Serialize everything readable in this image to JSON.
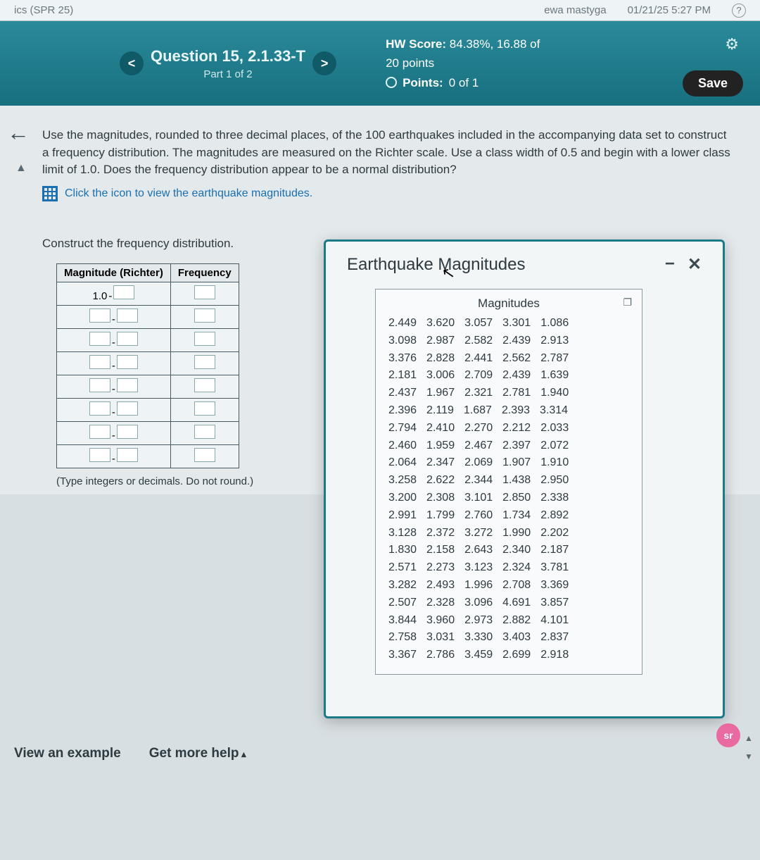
{
  "topbar": {
    "left": "ics (SPR 25)",
    "user": "ewa mastyga",
    "time": "01/21/25 5:27 PM"
  },
  "header": {
    "question_title": "Question 15, 2.1.33-T",
    "part": "Part 1 of 2",
    "hw_label": "HW Score:",
    "hw_value": "84.38%, 16.88 of",
    "hw_line2": "20 points",
    "points_label": "Points:",
    "points_value": "0 of 1",
    "save": "Save",
    "prev": "<",
    "next": ">"
  },
  "instructions": {
    "text": "Use the magnitudes, rounded to three decimal places, of the 100 earthquakes included in the accompanying data set to construct a frequency distribution. The magnitudes are measured on the Richter scale. Use a class width of 0.5 and begin with a lower class limit of 1.0. Does the frequency distribution appear to be a normal distribution?",
    "link": "Click the icon to view the earthquake magnitudes."
  },
  "freq": {
    "title": "Construct the frequency distribution.",
    "col1": "Magnitude (Richter)",
    "col2": "Frequency",
    "first_low": "1.0",
    "note": "(Type integers or decimals. Do not round.)",
    "row_count": 8
  },
  "modal": {
    "title": "Earthquake Magnitudes",
    "table_header": "Magnitudes",
    "rows": [
      [
        "2.449",
        "3.620",
        "3.057",
        "3.301",
        "1.086"
      ],
      [
        "3.098",
        "2.987",
        "2.582",
        "2.439",
        "2.913"
      ],
      [
        "3.376",
        "2.828",
        "2.441",
        "2.562",
        "2.787"
      ],
      [
        "2.181",
        "3.006",
        "2.709",
        "2.439",
        "1.639"
      ],
      [
        "2.437",
        "1.967",
        "2.321",
        "2.781",
        "1.940"
      ],
      [
        "2.396",
        "2.119",
        "1.687",
        "2.393",
        "3.314"
      ],
      [
        "2.794",
        "2.410",
        "2.270",
        "2.212",
        "2.033"
      ],
      [
        "2.460",
        "1.959",
        "2.467",
        "2.397",
        "2.072"
      ],
      [
        "2.064",
        "2.347",
        "2.069",
        "1.907",
        "1.910"
      ],
      [
        "3.258",
        "2.622",
        "2.344",
        "1.438",
        "2.950"
      ],
      [
        "3.200",
        "2.308",
        "3.101",
        "2.850",
        "2.338"
      ],
      [
        "2.991",
        "1.799",
        "2.760",
        "1.734",
        "2.892"
      ],
      [
        "3.128",
        "2.372",
        "3.272",
        "1.990",
        "2.202"
      ],
      [
        "1.830",
        "2.158",
        "2.643",
        "2.340",
        "2.187"
      ],
      [
        "2.571",
        "2.273",
        "3.123",
        "2.324",
        "3.781"
      ],
      [
        "3.282",
        "2.493",
        "1.996",
        "2.708",
        "3.369"
      ],
      [
        "2.507",
        "2.328",
        "3.096",
        "4.691",
        "3.857"
      ],
      [
        "3.844",
        "3.960",
        "2.973",
        "2.882",
        "4.101"
      ],
      [
        "2.758",
        "3.031",
        "3.330",
        "3.403",
        "2.837"
      ],
      [
        "3.367",
        "2.786",
        "3.459",
        "2.699",
        "2.918"
      ]
    ]
  },
  "footer": {
    "view": "View an example",
    "help": "Get more help"
  },
  "colors": {
    "header_bg": "#1a7a8a",
    "body_bg": "#d8dfe2",
    "content_bg": "#e4eaec",
    "link": "#1a6fb0",
    "save_bg": "#222222",
    "modal_border": "#1a7a8a"
  }
}
